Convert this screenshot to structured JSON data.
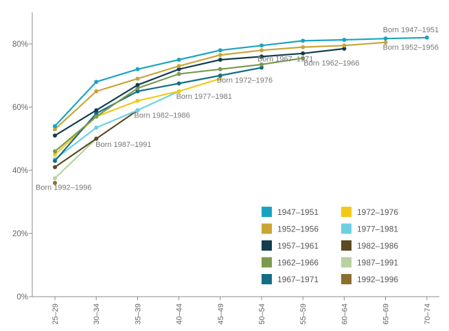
{
  "chart_data": {
    "type": "line",
    "categories": [
      "25–29",
      "30–34",
      "35–39",
      "40–44",
      "45–49",
      "50–54",
      "55–59",
      "60–64",
      "65–69",
      "70–74"
    ],
    "ylim": [
      0,
      90
    ],
    "yticks": [
      0,
      20,
      40,
      60,
      80
    ],
    "ytick_labels": [
      "0%",
      "20%",
      "40%",
      "60%",
      "80%"
    ],
    "grid": false,
    "legend_position": "bottom-right",
    "series": [
      {
        "name": "1947–1951",
        "color": "#1aa3c0",
        "values": [
          54,
          68,
          72,
          75,
          78,
          79.5,
          81,
          81.3,
          81.7,
          82
        ],
        "annotation": "Born 1947–1951"
      },
      {
        "name": "1952–1956",
        "color": "#c9a536",
        "values": [
          53,
          65,
          69,
          73,
          76.5,
          78,
          79,
          79.5,
          80.5,
          null
        ],
        "annotation": "Born 1952–1956"
      },
      {
        "name": "1957–1961",
        "color": "#123d4f",
        "values": [
          51,
          59,
          67,
          72,
          75,
          76,
          77,
          78.5,
          null,
          null
        ],
        "annotation": ""
      },
      {
        "name": "1962–1966",
        "color": "#7b9a4e",
        "values": [
          46,
          57,
          66,
          70.5,
          72,
          73.5,
          75.5,
          null,
          null,
          null
        ],
        "annotation": "Born 1962–1966"
      },
      {
        "name": "1967–1971",
        "color": "#136e86",
        "values": [
          43,
          58,
          65,
          67.5,
          70,
          72.5,
          null,
          null,
          null,
          null
        ],
        "annotation": "Born 1967–1971"
      },
      {
        "name": "1972–1976",
        "color": "#f3c919",
        "values": [
          45,
          57,
          62,
          65,
          69,
          null,
          null,
          null,
          null,
          null
        ],
        "annotation": "Born 1972–1976"
      },
      {
        "name": "1977–1981",
        "color": "#6cd0e2",
        "values": [
          43.5,
          53.5,
          59,
          65,
          null,
          null,
          null,
          null,
          null,
          null
        ],
        "annotation": "Born 1977–1981"
      },
      {
        "name": "1982–1986",
        "color": "#5b4a22",
        "values": [
          41,
          50,
          59,
          null,
          null,
          null,
          null,
          null,
          null,
          null
        ],
        "annotation": "Born 1982–1986"
      },
      {
        "name": "1987–1991",
        "color": "#b9d0a0",
        "values": [
          37.5,
          50,
          null,
          null,
          null,
          null,
          null,
          null,
          null,
          null
        ],
        "annotation": "Born 1987–1991"
      },
      {
        "name": "1992–1996",
        "color": "#8a6f30",
        "values": [
          36,
          null,
          null,
          null,
          null,
          null,
          null,
          null,
          null,
          null
        ],
        "annotation": "Born 1992–1996"
      }
    ]
  }
}
